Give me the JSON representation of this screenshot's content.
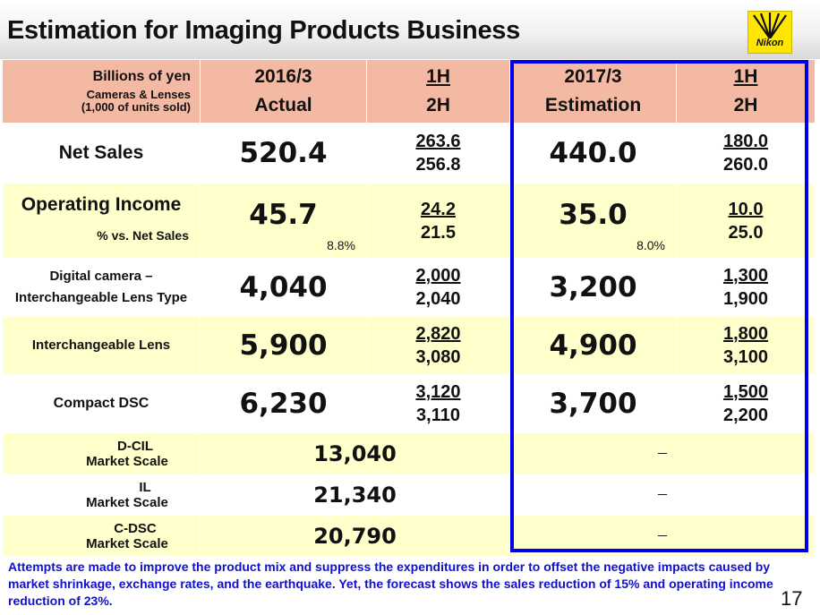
{
  "header": {
    "title": "Estimation for Imaging Products Business",
    "logo_text": "Nikon"
  },
  "table": {
    "corner": {
      "line1": "Billions of yen",
      "line2": "Cameras & Lenses",
      "line3": "(1,000 of units sold)"
    },
    "columns": {
      "fy2016": {
        "line1": "2016/3",
        "line2": "Actual"
      },
      "h2016": {
        "line1": "1H",
        "line2": "2H"
      },
      "fy2017": {
        "line1": "2017/3",
        "line2": "Estimation"
      },
      "h2017": {
        "line1": "1H",
        "line2": "2H"
      }
    },
    "rows": {
      "net_sales": {
        "label": "Net Sales",
        "fy2016": "520.4",
        "h1_2016": "263.6",
        "h2_2016": "256.8",
        "fy2017": "440.0",
        "h1_2017": "180.0",
        "h2_2017": "260.0"
      },
      "operating_income": {
        "label": "Operating Income",
        "sublabel": "% vs. Net Sales",
        "fy2016": "45.7",
        "pct2016": "8.8%",
        "h1_2016": "24.2",
        "h2_2016": "21.5",
        "fy2017": "35.0",
        "pct2017": "8.0%",
        "h1_2017": "10.0",
        "h2_2017": "25.0"
      },
      "digital_camera": {
        "label1": "Digital camera –",
        "label2": "Interchangeable Lens Type",
        "fy2016": "4,040",
        "h1_2016": "2,000",
        "h2_2016": "2,040",
        "fy2017": "3,200",
        "h1_2017": "1,300",
        "h2_2017": "1,900"
      },
      "interchangeable_lens": {
        "label": "Interchangeable Lens",
        "fy2016": "5,900",
        "h1_2016": "2,820",
        "h2_2016": "3,080",
        "fy2017": "4,900",
        "h1_2017": "1,800",
        "h2_2017": "3,100"
      },
      "compact_dsc": {
        "label": "Compact DSC",
        "fy2016": "6,230",
        "h1_2016": "3,120",
        "h2_2016": "3,110",
        "fy2017": "3,700",
        "h1_2017": "1,500",
        "h2_2017": "2,200"
      },
      "dcil_market": {
        "label1": "D-CIL",
        "label2": "Market Scale",
        "value2016": "13,040",
        "value2017": "－"
      },
      "il_market": {
        "label1": "IL",
        "label2": "Market Scale",
        "value2016": "21,340",
        "value2017": "－"
      },
      "cdsc_market": {
        "label1": "C-DSC",
        "label2": "Market Scale",
        "value2016": "20,790",
        "value2017": "－"
      }
    }
  },
  "footnote": "Attempts are made to improve the product mix and suppress the expenditures in order to offset the negative impacts caused by market shrinkage, exchange rates, and the earthquake. Yet, the forecast shows the sales reduction of 15% and operating income reduction of 23%.",
  "page_number": "17",
  "colors": {
    "header_row": "#f4b9a2",
    "odd_row": "#ffffcc",
    "highlight_border": "#0000e6",
    "note_text": "#1010cc",
    "logo": "#ffe600"
  }
}
